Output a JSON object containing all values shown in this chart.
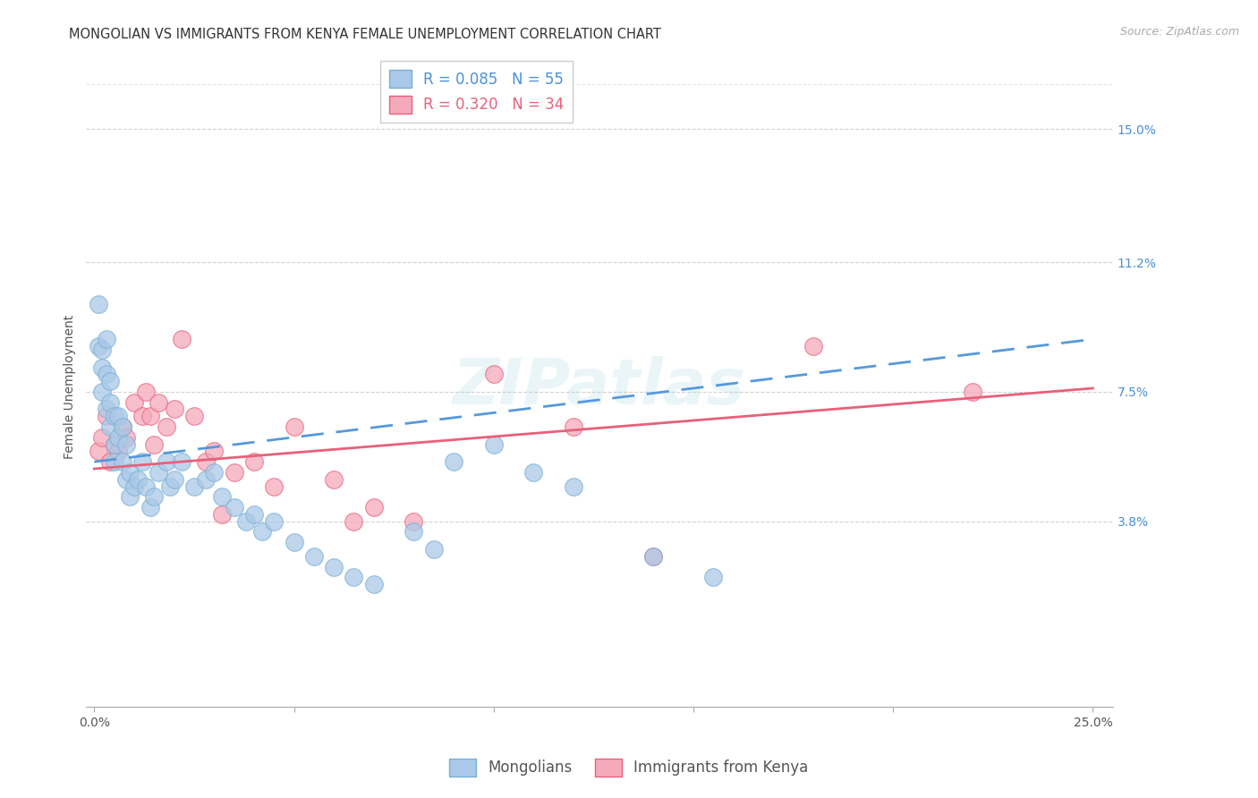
{
  "title": "MONGOLIAN VS IMMIGRANTS FROM KENYA FEMALE UNEMPLOYMENT CORRELATION CHART",
  "source": "Source: ZipAtlas.com",
  "ylabel": "Female Unemployment",
  "y_tick_labels_right": [
    "15.0%",
    "11.2%",
    "7.5%",
    "3.8%"
  ],
  "y_tick_values_right": [
    0.15,
    0.112,
    0.075,
    0.038
  ],
  "xlim": [
    -0.002,
    0.255
  ],
  "ylim": [
    -0.015,
    0.168
  ],
  "background_color": "#ffffff",
  "grid_color": "#cccccc",
  "mongolians_color": "#aac9e8",
  "kenya_color": "#f5aabb",
  "mongolians_edge_color": "#7aafd4",
  "kenya_edge_color": "#e8607a",
  "mongolians_line_color": "#5599dd",
  "kenya_line_color": "#e8607a",
  "mongolians_R": 0.085,
  "mongolians_N": 55,
  "kenya_R": 0.32,
  "kenya_N": 34,
  "title_fontsize": 10.5,
  "source_fontsize": 9,
  "axis_label_fontsize": 10,
  "tick_fontsize": 10,
  "legend_fontsize": 12,
  "mong_x": [
    0.001,
    0.001,
    0.002,
    0.002,
    0.002,
    0.003,
    0.003,
    0.003,
    0.004,
    0.004,
    0.004,
    0.005,
    0.005,
    0.005,
    0.006,
    0.006,
    0.007,
    0.007,
    0.008,
    0.008,
    0.009,
    0.009,
    0.01,
    0.011,
    0.012,
    0.013,
    0.014,
    0.015,
    0.016,
    0.018,
    0.019,
    0.02,
    0.022,
    0.025,
    0.028,
    0.03,
    0.032,
    0.035,
    0.038,
    0.04,
    0.042,
    0.045,
    0.05,
    0.055,
    0.06,
    0.065,
    0.07,
    0.08,
    0.085,
    0.09,
    0.1,
    0.11,
    0.12,
    0.14,
    0.155
  ],
  "mong_y": [
    0.1,
    0.088,
    0.087,
    0.082,
    0.075,
    0.09,
    0.08,
    0.07,
    0.078,
    0.072,
    0.065,
    0.068,
    0.06,
    0.055,
    0.068,
    0.062,
    0.065,
    0.055,
    0.06,
    0.05,
    0.052,
    0.045,
    0.048,
    0.05,
    0.055,
    0.048,
    0.042,
    0.045,
    0.052,
    0.055,
    0.048,
    0.05,
    0.055,
    0.048,
    0.05,
    0.052,
    0.045,
    0.042,
    0.038,
    0.04,
    0.035,
    0.038,
    0.032,
    0.028,
    0.025,
    0.022,
    0.02,
    0.035,
    0.03,
    0.055,
    0.06,
    0.052,
    0.048,
    0.028,
    0.022
  ],
  "kenya_x": [
    0.001,
    0.002,
    0.003,
    0.004,
    0.005,
    0.006,
    0.007,
    0.008,
    0.01,
    0.012,
    0.013,
    0.014,
    0.015,
    0.016,
    0.018,
    0.02,
    0.022,
    0.025,
    0.028,
    0.03,
    0.032,
    0.035,
    0.04,
    0.045,
    0.05,
    0.06,
    0.065,
    0.07,
    0.08,
    0.1,
    0.12,
    0.14,
    0.18,
    0.22
  ],
  "kenya_y": [
    0.058,
    0.062,
    0.068,
    0.055,
    0.06,
    0.058,
    0.065,
    0.062,
    0.072,
    0.068,
    0.075,
    0.068,
    0.06,
    0.072,
    0.065,
    0.07,
    0.09,
    0.068,
    0.055,
    0.058,
    0.04,
    0.052,
    0.055,
    0.048,
    0.065,
    0.05,
    0.038,
    0.042,
    0.038,
    0.08,
    0.065,
    0.028,
    0.088,
    0.075
  ],
  "mong_line_x0": 0.0,
  "mong_line_x1": 0.25,
  "mong_line_y0": 0.055,
  "mong_line_y1": 0.09,
  "kenya_line_x0": 0.0,
  "kenya_line_x1": 0.25,
  "kenya_line_y0": 0.053,
  "kenya_line_y1": 0.076
}
